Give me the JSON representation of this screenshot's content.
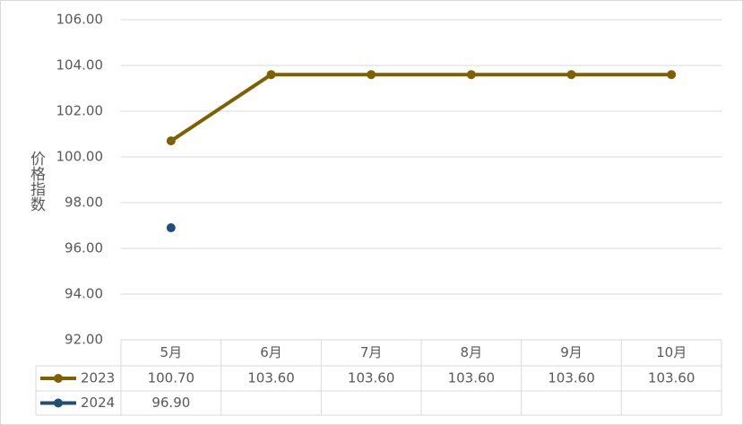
{
  "chart_data": {
    "type": "line",
    "y_label": "价格指数",
    "categories": [
      "5月",
      "6月",
      "7月",
      "8月",
      "9月",
      "10月"
    ],
    "series": [
      {
        "name": "2023",
        "color": "#7f6000",
        "values": [
          100.7,
          103.6,
          103.6,
          103.6,
          103.6,
          103.6
        ],
        "value_labels": [
          "100.70",
          "103.60",
          "103.60",
          "103.60",
          "103.60",
          "103.60"
        ]
      },
      {
        "name": "2024",
        "color": "#1f4e79",
        "values": [
          96.9,
          null,
          null,
          null,
          null,
          null
        ],
        "value_labels": [
          "96.90",
          null,
          null,
          null,
          null,
          null
        ]
      }
    ],
    "ylim": [
      92,
      106
    ],
    "yticks": [
      {
        "value": 92,
        "label": "92.00"
      },
      {
        "value": 94,
        "label": "94.00"
      },
      {
        "value": 96,
        "label": "96.00"
      },
      {
        "value": 98,
        "label": "98.00"
      },
      {
        "value": 100,
        "label": "100.00"
      },
      {
        "value": 102,
        "label": "102.00"
      },
      {
        "value": 104,
        "label": "104.00"
      },
      {
        "value": 106,
        "label": "106.00"
      }
    ],
    "grid": true,
    "data_table": true
  }
}
